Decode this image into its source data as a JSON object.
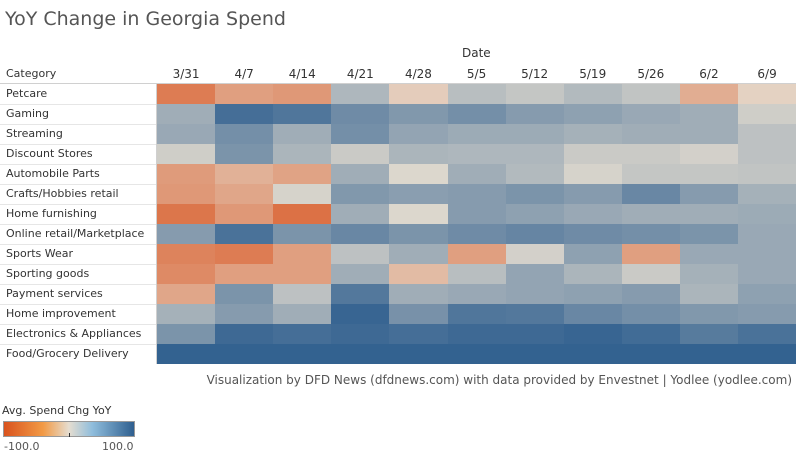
{
  "chart_data": {
    "type": "heatmap",
    "title": "YoY Change in Georgia Spend",
    "xlabel": "Date",
    "ylabel": "Category",
    "x": [
      "3/31",
      "4/7",
      "4/14",
      "4/21",
      "4/28",
      "5/5",
      "5/12",
      "5/19",
      "5/26",
      "6/2",
      "6/9"
    ],
    "y": [
      "Petcare",
      "Gaming",
      "Streaming",
      "Discount Stores",
      "Automobile Parts",
      "Crafts/Hobbies retail",
      "Home furnishing",
      "Online retail/Marketplace",
      "Sports Wear",
      "Sporting goods",
      "Payment services",
      "Home improvement",
      "Electronics & Appliances",
      "Food/Grocery Delivery"
    ],
    "values": [
      [
        -70,
        -45,
        -50,
        30,
        -12,
        25,
        18,
        28,
        20,
        -35,
        -8
      ],
      [
        38,
        88,
        82,
        65,
        55,
        62,
        52,
        48,
        42,
        38,
        12
      ],
      [
        42,
        62,
        38,
        62,
        45,
        40,
        40,
        35,
        38,
        38,
        22
      ],
      [
        12,
        58,
        32,
        15,
        32,
        30,
        30,
        15,
        15,
        10,
        22
      ],
      [
        -48,
        -32,
        -42,
        38,
        5,
        38,
        28,
        8,
        18,
        18,
        20
      ],
      [
        -50,
        -40,
        8,
        55,
        50,
        52,
        58,
        52,
        68,
        52,
        35
      ],
      [
        -75,
        -50,
        -78,
        38,
        5,
        52,
        48,
        42,
        38,
        38,
        40
      ],
      [
        52,
        85,
        58,
        68,
        58,
        65,
        70,
        65,
        62,
        58,
        42
      ],
      [
        -65,
        -70,
        -45,
        22,
        38,
        -45,
        10,
        48,
        -45,
        42,
        42
      ],
      [
        -60,
        -45,
        -45,
        38,
        -25,
        25,
        45,
        32,
        15,
        35,
        42
      ],
      [
        -40,
        58,
        22,
        80,
        38,
        42,
        45,
        48,
        52,
        32,
        48
      ],
      [
        35,
        52,
        38,
        95,
        60,
        82,
        80,
        68,
        62,
        55,
        52
      ],
      [
        58,
        92,
        88,
        92,
        88,
        92,
        92,
        95,
        90,
        78,
        85
      ],
      [
        98,
        98,
        98,
        98,
        98,
        98,
        98,
        98,
        98,
        98,
        98
      ]
    ],
    "color_range": [
      -100,
      100
    ],
    "colors": {
      "negative": "#d9531e",
      "neutral": "#e5ddd0",
      "positive": "#2f5f8f"
    },
    "legend": {
      "title": "Avg. Spend Chg YoY",
      "min_label": "-100.0",
      "max_label": "100.0",
      "placement": "bottom-left"
    }
  },
  "credit": "Visualization by DFD News (dfdnews.com) with data provided by Envestnet | Yodlee (yodlee.com)"
}
